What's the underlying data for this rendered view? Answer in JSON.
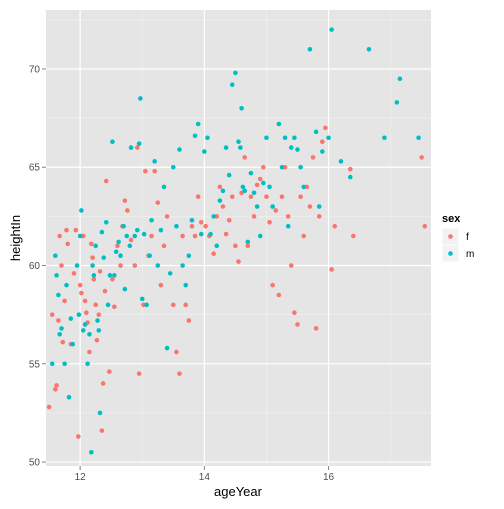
{
  "chart_data": {
    "type": "scatter",
    "xlabel": "ageYear",
    "ylabel": "heightIn",
    "xlim": [
      11.45,
      17.65
    ],
    "ylim": [
      49.8,
      73.0
    ],
    "x_ticks": [
      12,
      14,
      16
    ],
    "y_ticks": [
      50,
      55,
      60,
      65,
      70
    ],
    "grid": true,
    "legend_position": "right",
    "legend": {
      "title": "sex"
    },
    "series": [
      {
        "name": "f",
        "color": "#F8766D",
        "points": [
          [
            11.5,
            52.8
          ],
          [
            11.55,
            57.5
          ],
          [
            11.6,
            53.7
          ],
          [
            11.62,
            53.9
          ],
          [
            11.65,
            57.2
          ],
          [
            11.67,
            61.5
          ],
          [
            11.7,
            60.0
          ],
          [
            11.72,
            56.1
          ],
          [
            11.75,
            58.2
          ],
          [
            11.78,
            61.8
          ],
          [
            11.8,
            61.1
          ],
          [
            11.85,
            56.0
          ],
          [
            11.9,
            59.6
          ],
          [
            11.93,
            61.8
          ],
          [
            11.97,
            51.3
          ],
          [
            12.0,
            59.0
          ],
          [
            12.02,
            58.6
          ],
          [
            12.05,
            61.5
          ],
          [
            12.08,
            58.2
          ],
          [
            12.1,
            57.6
          ],
          [
            12.12,
            57.1
          ],
          [
            12.15,
            55.6
          ],
          [
            12.18,
            61.1
          ],
          [
            12.2,
            60.4
          ],
          [
            12.22,
            59.3
          ],
          [
            12.25,
            58.0
          ],
          [
            12.27,
            56.2
          ],
          [
            12.3,
            57.5
          ],
          [
            12.32,
            59.7
          ],
          [
            12.35,
            51.6
          ],
          [
            12.37,
            54.0
          ],
          [
            12.4,
            58.7
          ],
          [
            12.42,
            64.3
          ],
          [
            12.47,
            54.6
          ],
          [
            12.52,
            59.3
          ],
          [
            12.55,
            57.9
          ],
          [
            12.6,
            61.0
          ],
          [
            12.65,
            60.0
          ],
          [
            12.68,
            62.0
          ],
          [
            12.72,
            63.3
          ],
          [
            12.76,
            62.8
          ],
          [
            12.82,
            61.3
          ],
          [
            12.88,
            60.0
          ],
          [
            12.92,
            66.0
          ],
          [
            12.95,
            54.5
          ],
          [
            13.02,
            58.0
          ],
          [
            13.05,
            64.8
          ],
          [
            13.1,
            60.5
          ],
          [
            13.15,
            61.5
          ],
          [
            13.2,
            64.8
          ],
          [
            13.25,
            63.2
          ],
          [
            13.3,
            59.0
          ],
          [
            13.35,
            61.0
          ],
          [
            13.4,
            62.5
          ],
          [
            13.5,
            58.0
          ],
          [
            13.55,
            55.6
          ],
          [
            13.6,
            54.5
          ],
          [
            13.65,
            61.5
          ],
          [
            13.7,
            58.0
          ],
          [
            13.75,
            57.2
          ],
          [
            13.8,
            62.0
          ],
          [
            13.85,
            61.5
          ],
          [
            13.9,
            63.5
          ],
          [
            13.95,
            62.2
          ],
          [
            14.02,
            62.0
          ],
          [
            14.08,
            61.5
          ],
          [
            14.15,
            60.6
          ],
          [
            14.2,
            62.5
          ],
          [
            14.25,
            64.0
          ],
          [
            14.3,
            63.0
          ],
          [
            14.35,
            61.6
          ],
          [
            14.4,
            62.3
          ],
          [
            14.45,
            63.5
          ],
          [
            14.5,
            61.0
          ],
          [
            14.55,
            60.2
          ],
          [
            14.6,
            63.7
          ],
          [
            14.65,
            65.5
          ],
          [
            14.7,
            61.0
          ],
          [
            14.75,
            63.5
          ],
          [
            14.8,
            62.5
          ],
          [
            14.85,
            64.1
          ],
          [
            14.9,
            64.4
          ],
          [
            14.95,
            65.0
          ],
          [
            15.0,
            63.5
          ],
          [
            15.05,
            62.2
          ],
          [
            15.1,
            59.0
          ],
          [
            15.15,
            62.8
          ],
          [
            15.2,
            58.5
          ],
          [
            15.25,
            63.5
          ],
          [
            15.3,
            65.0
          ],
          [
            15.35,
            62.5
          ],
          [
            15.4,
            60.0
          ],
          [
            15.45,
            57.6
          ],
          [
            15.5,
            57.0
          ],
          [
            15.55,
            63.5
          ],
          [
            15.6,
            61.5
          ],
          [
            15.65,
            64.0
          ],
          [
            15.7,
            63.0
          ],
          [
            15.75,
            65.5
          ],
          [
            15.8,
            56.8
          ],
          [
            15.85,
            62.5
          ],
          [
            15.9,
            66.3
          ],
          [
            15.95,
            67.0
          ],
          [
            16.05,
            59.8
          ],
          [
            16.1,
            62.0
          ],
          [
            16.35,
            64.9
          ],
          [
            16.4,
            61.5
          ],
          [
            17.5,
            65.5
          ],
          [
            17.55,
            62.0
          ]
        ]
      },
      {
        "name": "m",
        "color": "#00BFC4",
        "points": [
          [
            11.55,
            55.0
          ],
          [
            11.6,
            60.5
          ],
          [
            11.62,
            59.5
          ],
          [
            11.65,
            58.5
          ],
          [
            11.67,
            56.5
          ],
          [
            11.7,
            56.8
          ],
          [
            11.75,
            55.0
          ],
          [
            11.78,
            59.0
          ],
          [
            11.82,
            53.3
          ],
          [
            11.85,
            57.3
          ],
          [
            11.88,
            56.0
          ],
          [
            11.95,
            60.0
          ],
          [
            11.98,
            57.5
          ],
          [
            12.0,
            61.5
          ],
          [
            12.02,
            62.8
          ],
          [
            12.05,
            56.7
          ],
          [
            12.08,
            57.0
          ],
          [
            12.12,
            55.0
          ],
          [
            12.15,
            56.5
          ],
          [
            12.18,
            50.5
          ],
          [
            12.2,
            60.0
          ],
          [
            12.22,
            59.5
          ],
          [
            12.25,
            61.0
          ],
          [
            12.28,
            57.2
          ],
          [
            12.3,
            56.7
          ],
          [
            12.32,
            52.5
          ],
          [
            12.35,
            61.7
          ],
          [
            12.38,
            60.4
          ],
          [
            12.42,
            62.2
          ],
          [
            12.45,
            58.0
          ],
          [
            12.48,
            59.5
          ],
          [
            12.52,
            66.3
          ],
          [
            12.55,
            59.5
          ],
          [
            12.58,
            60.7
          ],
          [
            12.62,
            61.2
          ],
          [
            12.65,
            60.5
          ],
          [
            12.7,
            62.0
          ],
          [
            12.72,
            58.8
          ],
          [
            12.75,
            61.5
          ],
          [
            12.8,
            61.0
          ],
          [
            12.82,
            66.0
          ],
          [
            12.88,
            61.5
          ],
          [
            12.92,
            61.8
          ],
          [
            12.95,
            66.2
          ],
          [
            12.97,
            68.5
          ],
          [
            13.0,
            58.3
          ],
          [
            13.03,
            61.6
          ],
          [
            13.07,
            58.0
          ],
          [
            13.12,
            60.5
          ],
          [
            13.15,
            62.3
          ],
          [
            13.2,
            65.3
          ],
          [
            13.25,
            60.0
          ],
          [
            13.3,
            61.8
          ],
          [
            13.35,
            64.0
          ],
          [
            13.4,
            55.8
          ],
          [
            13.45,
            59.6
          ],
          [
            13.5,
            65.0
          ],
          [
            13.55,
            62.0
          ],
          [
            13.6,
            65.9
          ],
          [
            13.65,
            60.0
          ],
          [
            13.7,
            59.0
          ],
          [
            13.75,
            60.5
          ],
          [
            13.8,
            62.3
          ],
          [
            13.85,
            66.6
          ],
          [
            13.9,
            67.2
          ],
          [
            13.95,
            61.6
          ],
          [
            14.0,
            65.8
          ],
          [
            14.05,
            66.5
          ],
          [
            14.1,
            61.6
          ],
          [
            14.15,
            62.5
          ],
          [
            14.2,
            61.0
          ],
          [
            14.25,
            63.3
          ],
          [
            14.3,
            63.8
          ],
          [
            14.35,
            66.0
          ],
          [
            14.4,
            64.6
          ],
          [
            14.45,
            69.2
          ],
          [
            14.5,
            69.8
          ],
          [
            14.55,
            66.3
          ],
          [
            14.58,
            66.0
          ],
          [
            14.6,
            68.0
          ],
          [
            14.62,
            64.0
          ],
          [
            14.65,
            63.8
          ],
          [
            14.7,
            61.2
          ],
          [
            14.75,
            64.7
          ],
          [
            14.8,
            63.7
          ],
          [
            14.85,
            63.0
          ],
          [
            14.9,
            61.5
          ],
          [
            14.95,
            64.2
          ],
          [
            15.0,
            66.5
          ],
          [
            15.05,
            64.0
          ],
          [
            15.1,
            63.0
          ],
          [
            15.2,
            67.2
          ],
          [
            15.25,
            65.0
          ],
          [
            15.3,
            66.5
          ],
          [
            15.35,
            62.0
          ],
          [
            15.4,
            66.0
          ],
          [
            15.45,
            66.5
          ],
          [
            15.5,
            65.9
          ],
          [
            15.55,
            65.0
          ],
          [
            15.6,
            64.0
          ],
          [
            15.7,
            71.0
          ],
          [
            15.8,
            66.8
          ],
          [
            15.85,
            63.0
          ],
          [
            15.9,
            65.8
          ],
          [
            16.0,
            66.5
          ],
          [
            16.05,
            72.0
          ],
          [
            16.2,
            65.3
          ],
          [
            16.35,
            64.5
          ],
          [
            16.65,
            71.0
          ],
          [
            16.9,
            66.5
          ],
          [
            17.1,
            68.3
          ],
          [
            17.15,
            69.5
          ],
          [
            17.45,
            66.5
          ]
        ]
      }
    ]
  }
}
